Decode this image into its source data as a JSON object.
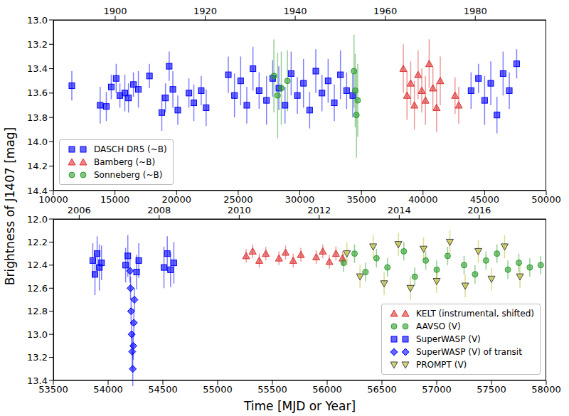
{
  "chart_data": [
    {
      "type": "scatter",
      "ylabel": "Brightness of J1407 [mag]",
      "legend": "lower left",
      "xlim": [
        10000,
        50000
      ],
      "xticks": [
        10000,
        15000,
        20000,
        25000,
        30000,
        35000,
        40000,
        45000,
        50000
      ],
      "x2lim": [
        10000,
        50000
      ],
      "x2ticks": [
        {
          "value": 15020,
          "label": "1900"
        },
        {
          "value": 22325,
          "label": "1920"
        },
        {
          "value": 29629,
          "label": "1940"
        },
        {
          "value": 36934,
          "label": "1960"
        },
        {
          "value": 44239,
          "label": "1980"
        }
      ],
      "ylim": [
        14.4,
        13.0
      ],
      "yticks": [
        {
          "value": 13.0,
          "label": "13.0"
        },
        {
          "value": 13.2,
          "label": "13.2"
        },
        {
          "value": 13.4,
          "label": "13.4"
        },
        {
          "value": 13.6,
          "label": "13.6"
        },
        {
          "value": 13.8,
          "label": "13.8"
        },
        {
          "value": 14.0,
          "label": "14.0"
        },
        {
          "value": 14.2,
          "label": "14.2"
        },
        {
          "value": 14.4,
          "label": "14.4"
        }
      ],
      "series": [
        {
          "name": "DASCH DR5 (~B)",
          "color": "#0000ff",
          "marker": "square",
          "x": [
            11500,
            13800,
            14300,
            14700,
            15100,
            15400,
            15800,
            16100,
            16500,
            16900,
            17800,
            18800,
            19100,
            19400,
            19700,
            20100,
            21000,
            21400,
            22000,
            22400,
            24200,
            24700,
            25200,
            25700,
            26200,
            26700,
            27300,
            27800,
            28300,
            28800,
            29300,
            29800,
            30300,
            30800,
            31300,
            31800,
            32300,
            32800,
            33300,
            33800,
            34300,
            43900,
            44500,
            45000,
            45500,
            46000,
            46500,
            47000,
            47600
          ],
          "values": [
            13.54,
            13.7,
            13.71,
            13.55,
            13.48,
            13.62,
            13.6,
            13.64,
            13.53,
            13.57,
            13.46,
            13.76,
            13.64,
            13.38,
            13.57,
            13.74,
            13.6,
            13.68,
            13.58,
            13.72,
            13.45,
            13.62,
            13.5,
            13.7,
            13.4,
            13.58,
            13.66,
            13.48,
            13.56,
            13.7,
            13.44,
            13.62,
            13.52,
            13.74,
            13.42,
            13.6,
            13.5,
            13.68,
            13.45,
            13.58,
            13.62,
            13.58,
            13.48,
            13.66,
            13.52,
            13.78,
            13.44,
            13.58,
            13.36
          ],
          "errors": [
            0.12,
            0.15,
            0.12,
            0.1,
            0.12,
            0.1,
            0.15,
            0.12,
            0.1,
            0.15,
            0.1,
            0.15,
            0.12,
            0.12,
            0.15,
            0.12,
            0.12,
            0.15,
            0.12,
            0.15,
            0.15,
            0.18,
            0.2,
            0.15,
            0.18,
            0.15,
            0.2,
            0.15,
            0.18,
            0.15,
            0.18,
            0.15,
            0.2,
            0.15,
            0.18,
            0.15,
            0.18,
            0.15,
            0.2,
            0.15,
            0.18,
            0.15,
            0.12,
            0.2,
            0.18,
            0.15,
            0.18,
            0.15,
            0.12
          ]
        },
        {
          "name": "Bamberg (~B)",
          "color": "#dd3333",
          "marker": "triangle",
          "x": [
            38400,
            38700,
            39000,
            39300,
            39600,
            39900,
            40200,
            40500,
            40800,
            41100,
            41400,
            42600,
            42900
          ],
          "values": [
            13.4,
            13.62,
            13.52,
            13.7,
            13.45,
            13.58,
            13.66,
            13.36,
            13.56,
            13.72,
            13.5,
            13.62,
            13.7
          ],
          "errors": [
            0.2,
            0.2,
            0.18,
            0.2,
            0.2,
            0.18,
            0.2,
            0.2,
            0.18,
            0.2,
            0.2,
            0.15,
            0.15
          ]
        },
        {
          "name": "Sonneberg (~B)",
          "color": "#2e9e2e",
          "marker": "circle",
          "x": [
            27900,
            28200,
            28500,
            29000,
            34400,
            34500,
            34600,
            34700
          ],
          "values": [
            13.46,
            13.62,
            13.56,
            13.5,
            13.42,
            13.58,
            13.78,
            13.66
          ],
          "errors": [
            0.3,
            0.35,
            0.3,
            0.25,
            0.3,
            0.3,
            0.35,
            0.3
          ]
        }
      ]
    },
    {
      "type": "scatter",
      "xlabel": "Time [MJD or Year]",
      "legend": "lower right",
      "xlim": [
        53500,
        58000
      ],
      "xticks": [
        53500,
        54000,
        54500,
        55000,
        55500,
        56000,
        56500,
        57000,
        57500,
        58000
      ],
      "x2lim": [
        53500,
        58000
      ],
      "x2ticks": [
        {
          "value": 53736,
          "label": "2006"
        },
        {
          "value": 54466,
          "label": "2008"
        },
        {
          "value": 55197,
          "label": "2010"
        },
        {
          "value": 55927,
          "label": "2012"
        },
        {
          "value": 56658,
          "label": "2014"
        },
        {
          "value": 57388,
          "label": "2016"
        }
      ],
      "ylim": [
        13.4,
        12.0
      ],
      "yticks": [
        {
          "value": 12.0,
          "label": "12.0"
        },
        {
          "value": 12.2,
          "label": "12.2"
        },
        {
          "value": 12.4,
          "label": "12.4"
        },
        {
          "value": 12.6,
          "label": "12.6"
        },
        {
          "value": 12.8,
          "label": "12.8"
        },
        {
          "value": 13.0,
          "label": "13.0"
        },
        {
          "value": 13.2,
          "label": "13.2"
        },
        {
          "value": 13.4,
          "label": "13.4"
        }
      ],
      "series": [
        {
          "name": "KELT (instrumental, shifted)",
          "color": "#dd3333",
          "marker": "triangle",
          "x": [
            55260,
            55320,
            55380,
            55440,
            55560,
            55620,
            55690,
            55760,
            55900,
            55960,
            56020,
            56080,
            56140
          ],
          "values": [
            12.32,
            12.28,
            12.36,
            12.3,
            12.34,
            12.29,
            12.36,
            12.31,
            12.33,
            12.28,
            12.37,
            12.3,
            12.34
          ],
          "errors": [
            0.06,
            0.06,
            0.06,
            0.06,
            0.06,
            0.06,
            0.06,
            0.06,
            0.06,
            0.06,
            0.06,
            0.06,
            0.06
          ]
        },
        {
          "name": "AAVSO (V)",
          "color": "#2e9e2e",
          "marker": "circle",
          "x": [
            56150,
            56250,
            56350,
            56450,
            56550,
            56700,
            56800,
            56900,
            57000,
            57100,
            57250,
            57350,
            57450,
            57550,
            57650,
            57750,
            57850,
            57950
          ],
          "values": [
            12.38,
            12.3,
            12.46,
            12.34,
            12.42,
            12.28,
            12.5,
            12.36,
            12.44,
            12.32,
            12.4,
            12.48,
            12.36,
            12.3,
            12.44,
            12.38,
            12.42,
            12.4
          ],
          "errors": [
            0.08,
            0.08,
            0.08,
            0.08,
            0.08,
            0.08,
            0.08,
            0.08,
            0.08,
            0.08,
            0.08,
            0.08,
            0.08,
            0.08,
            0.08,
            0.08,
            0.08,
            0.08
          ]
        },
        {
          "name": "SuperWASP (V)",
          "color": "#0000ff",
          "marker": "square",
          "x": [
            53860,
            53880,
            53900,
            53920,
            53940,
            54160,
            54180,
            54260,
            54280,
            54510,
            54540,
            54570,
            54600
          ],
          "values": [
            12.36,
            12.48,
            12.3,
            12.42,
            12.38,
            12.4,
            12.32,
            12.46,
            12.36,
            12.42,
            12.3,
            12.44,
            12.38
          ],
          "errors": [
            0.15,
            0.18,
            0.15,
            0.2,
            0.15,
            0.15,
            0.18,
            0.15,
            0.15,
            0.18,
            0.15,
            0.15,
            0.18
          ]
        },
        {
          "name": "SuperWASP (V) of transit",
          "color": "#0000ff",
          "marker": "diamond",
          "x": [
            54200,
            54205,
            54210,
            54215,
            54220,
            54225,
            54230,
            54235,
            54240
          ],
          "values": [
            12.45,
            12.6,
            12.8,
            13.0,
            13.15,
            13.3,
            13.1,
            12.9,
            12.7
          ],
          "errors": [
            0.1,
            0.1,
            0.12,
            0.12,
            0.15,
            0.15,
            0.12,
            0.12,
            0.1
          ]
        },
        {
          "name": "PROMPT (V)",
          "color": "#b8b820",
          "marker": "triangle_down",
          "x": [
            56180,
            56300,
            56420,
            56520,
            56650,
            56760,
            56880,
            57000,
            57120,
            57260,
            57380,
            57500,
            57620,
            57760
          ],
          "values": [
            12.3,
            12.5,
            12.24,
            12.56,
            12.22,
            12.6,
            12.26,
            12.54,
            12.2,
            12.58,
            12.28,
            12.52,
            12.24,
            12.5
          ],
          "errors": [
            0.1,
            0.1,
            0.1,
            0.1,
            0.1,
            0.1,
            0.1,
            0.1,
            0.1,
            0.1,
            0.1,
            0.1,
            0.1,
            0.1
          ]
        }
      ]
    }
  ]
}
